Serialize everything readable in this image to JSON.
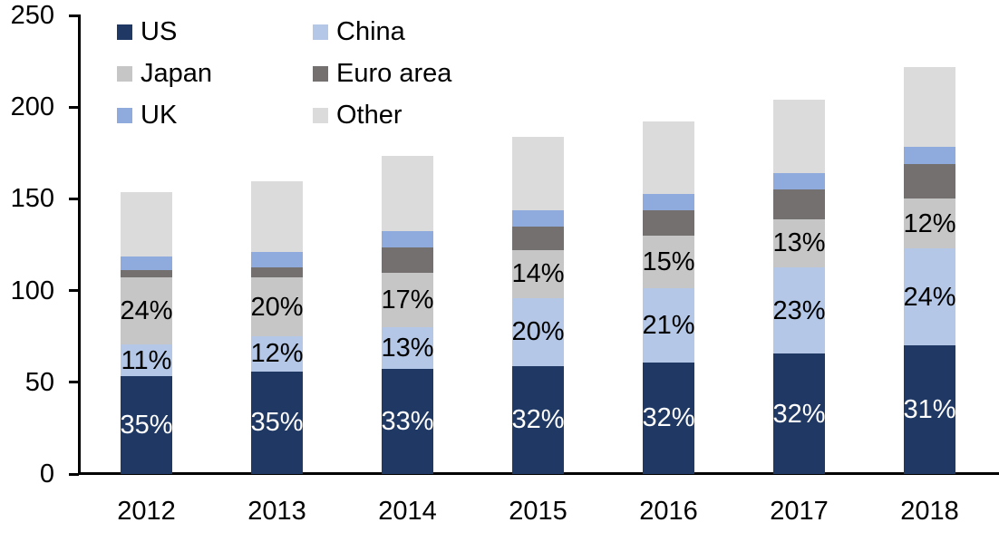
{
  "chart_data": {
    "type": "bar",
    "stacked": true,
    "title": "",
    "xlabel": "",
    "ylabel": "",
    "categories": [
      "2012",
      "2013",
      "2014",
      "2015",
      "2016",
      "2017",
      "2018"
    ],
    "series": [
      {
        "name": "US",
        "color": "#1F3864",
        "label_color": "#FFFFFF",
        "values": [
          53.5,
          56,
          57.5,
          59,
          61,
          65.5,
          70
        ],
        "labels": [
          "35%",
          "35%",
          "33%",
          "32%",
          "32%",
          "32%",
          "31%"
        ]
      },
      {
        "name": "China",
        "color": "#B4C7E7",
        "label_color": "#000000",
        "values": [
          17,
          19,
          22.5,
          37,
          40.5,
          47,
          53
        ],
        "labels": [
          "11%",
          "12%",
          "13%",
          "20%",
          "21%",
          "23%",
          "24%"
        ]
      },
      {
        "name": "Japan",
        "color": "#C6C6C6",
        "label_color": "#000000",
        "values": [
          36.5,
          32,
          29.5,
          26,
          28.5,
          26.5,
          27
        ],
        "labels": [
          "24%",
          "20%",
          "17%",
          "14%",
          "15%",
          "13%",
          "12%"
        ]
      },
      {
        "name": "Euro area",
        "color": "#757070",
        "label_color": null,
        "values": [
          4,
          5.5,
          14,
          13,
          14,
          16,
          19
        ],
        "labels": null
      },
      {
        "name": "UK",
        "color": "#8FAADC",
        "label_color": null,
        "values": [
          7.5,
          8.5,
          9,
          9,
          8.5,
          9,
          9.5
        ],
        "labels": null
      },
      {
        "name": "Other",
        "color": "#DBDBDB",
        "label_color": null,
        "values": [
          35,
          38.5,
          41,
          40,
          39.5,
          40,
          43.5
        ],
        "labels": null
      }
    ],
    "totals": [
      153.5,
      160,
      173.5,
      184,
      192,
      204,
      222
    ],
    "ylim": [
      0,
      250
    ],
    "yticks": [
      0,
      50,
      100,
      150,
      200,
      250
    ],
    "grid": false,
    "legend_position": "top-left",
    "legend_order": [
      "US",
      "China",
      "Japan",
      "Euro area",
      "UK",
      "Other"
    ],
    "axis_color": "#000000"
  }
}
